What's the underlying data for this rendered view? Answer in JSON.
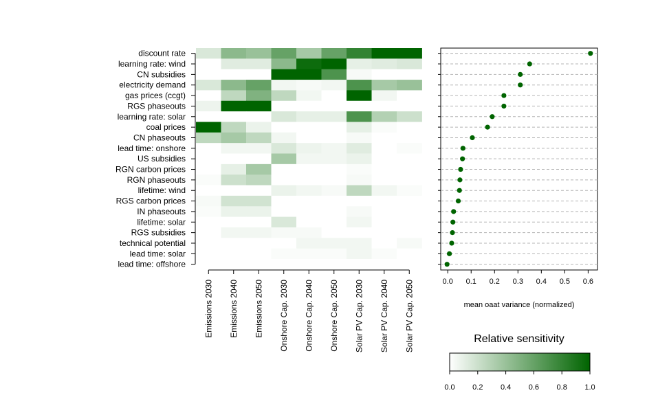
{
  "chart_data": [
    {
      "type": "heatmap",
      "rows": [
        "discount rate",
        "learning rate: wind",
        "CN subsidies",
        "electricity demand",
        "gas prices (ccgt)",
        "RGS phaseouts",
        "learning rate: solar",
        "coal prices",
        "CN phaseouts",
        "lead time: onshore",
        "US subsidies",
        "RGN carbon prices",
        "RGN phaseouts",
        "lifetime: wind",
        "RGS carbon prices",
        "IN phaseouts",
        "lifetime: solar",
        "RGS subsidies",
        "technical potential",
        "lead time: solar",
        "lead time: offshore"
      ],
      "columns": [
        "Emissions 2030",
        "Emissions 2040",
        "Emissions 2050",
        "Onshore Cap. 2030",
        "Onshore Cap. 2040",
        "Onshore Cap. 2050",
        "Solar PV Cap. 2030",
        "Solar PV Cap. 2040",
        "Solar PV Cap. 2050"
      ],
      "values": [
        [
          0.15,
          0.45,
          0.4,
          0.6,
          0.35,
          0.6,
          0.8,
          1.0,
          1.0
        ],
        [
          0.0,
          0.12,
          0.12,
          0.45,
          0.95,
          1.0,
          0.1,
          0.12,
          0.15
        ],
        [
          0.0,
          0.0,
          0.0,
          1.0,
          1.0,
          0.7,
          0.03,
          0.0,
          0.0
        ],
        [
          0.15,
          0.45,
          0.6,
          0.05,
          0.03,
          0.05,
          0.7,
          0.35,
          0.4
        ],
        [
          0.0,
          0.25,
          0.5,
          0.25,
          0.05,
          0.0,
          1.0,
          0.05,
          0.0
        ],
        [
          0.07,
          1.0,
          1.0,
          0.0,
          0.0,
          0.0,
          0.0,
          0.0,
          0.0
        ],
        [
          0.0,
          0.0,
          0.0,
          0.15,
          0.1,
          0.1,
          0.7,
          0.3,
          0.2
        ],
        [
          1.0,
          0.25,
          0.08,
          0.0,
          0.0,
          0.0,
          0.1,
          0.02,
          0.0
        ],
        [
          0.25,
          0.35,
          0.25,
          0.05,
          0.0,
          0.0,
          0.03,
          0.0,
          0.0
        ],
        [
          0.0,
          0.05,
          0.05,
          0.15,
          0.07,
          0.05,
          0.12,
          0.0,
          0.02
        ],
        [
          0.0,
          0.0,
          0.0,
          0.35,
          0.05,
          0.05,
          0.08,
          0.0,
          0.0
        ],
        [
          0.0,
          0.1,
          0.35,
          0.0,
          0.0,
          0.0,
          0.02,
          0.0,
          0.0
        ],
        [
          0.02,
          0.2,
          0.25,
          0.0,
          0.0,
          0.0,
          0.03,
          0.0,
          0.0
        ],
        [
          0.0,
          0.0,
          0.0,
          0.08,
          0.05,
          0.03,
          0.25,
          0.05,
          0.02
        ],
        [
          0.03,
          0.18,
          0.18,
          0.0,
          0.0,
          0.0,
          0.0,
          0.0,
          0.0
        ],
        [
          0.02,
          0.08,
          0.08,
          0.0,
          0.0,
          0.0,
          0.03,
          0.0,
          0.0
        ],
        [
          0.0,
          0.0,
          0.0,
          0.15,
          0.0,
          0.0,
          0.05,
          0.0,
          0.0
        ],
        [
          0.0,
          0.05,
          0.05,
          0.03,
          0.03,
          0.0,
          0.0,
          0.0,
          0.0
        ],
        [
          0.0,
          0.0,
          0.0,
          0.0,
          0.05,
          0.05,
          0.05,
          0.0,
          0.03
        ],
        [
          0.0,
          0.0,
          0.0,
          0.02,
          0.02,
          0.02,
          0.05,
          0.02,
          0.0
        ],
        [
          0.0,
          0.0,
          0.0,
          0.0,
          0.0,
          0.0,
          0.0,
          0.0,
          0.0
        ]
      ],
      "color_low": "#ffffff",
      "color_high": "#006400"
    },
    {
      "type": "scatter",
      "xlabel": "mean oaat variance (normalized)",
      "xticks": [
        0.0,
        0.1,
        0.2,
        0.3,
        0.4,
        0.5,
        0.6
      ],
      "xlim": [
        -0.03,
        0.64
      ],
      "rows": [
        "discount rate",
        "learning rate: wind",
        "CN subsidies",
        "electricity demand",
        "gas prices (ccgt)",
        "RGS phaseouts",
        "learning rate: solar",
        "coal prices",
        "CN phaseouts",
        "lead time: onshore",
        "US subsidies",
        "RGN carbon prices",
        "RGN phaseouts",
        "lifetime: wind",
        "RGS carbon prices",
        "IN phaseouts",
        "lifetime: solar",
        "RGS subsidies",
        "technical potential",
        "lead time: solar",
        "lead time: offshore"
      ],
      "values": [
        0.61,
        0.35,
        0.31,
        0.31,
        0.24,
        0.24,
        0.19,
        0.17,
        0.105,
        0.065,
        0.063,
        0.055,
        0.052,
        0.05,
        0.045,
        0.025,
        0.022,
        0.02,
        0.017,
        0.007,
        -0.003
      ],
      "grid": "horizontal dashed",
      "point_color": "#006400"
    },
    {
      "type": "colorbar",
      "title": "Relative sensitivity",
      "ticks": [
        "0.0",
        "0.2",
        "0.4",
        "0.6",
        "0.8",
        "1.0"
      ],
      "range": [
        0,
        1
      ]
    }
  ]
}
